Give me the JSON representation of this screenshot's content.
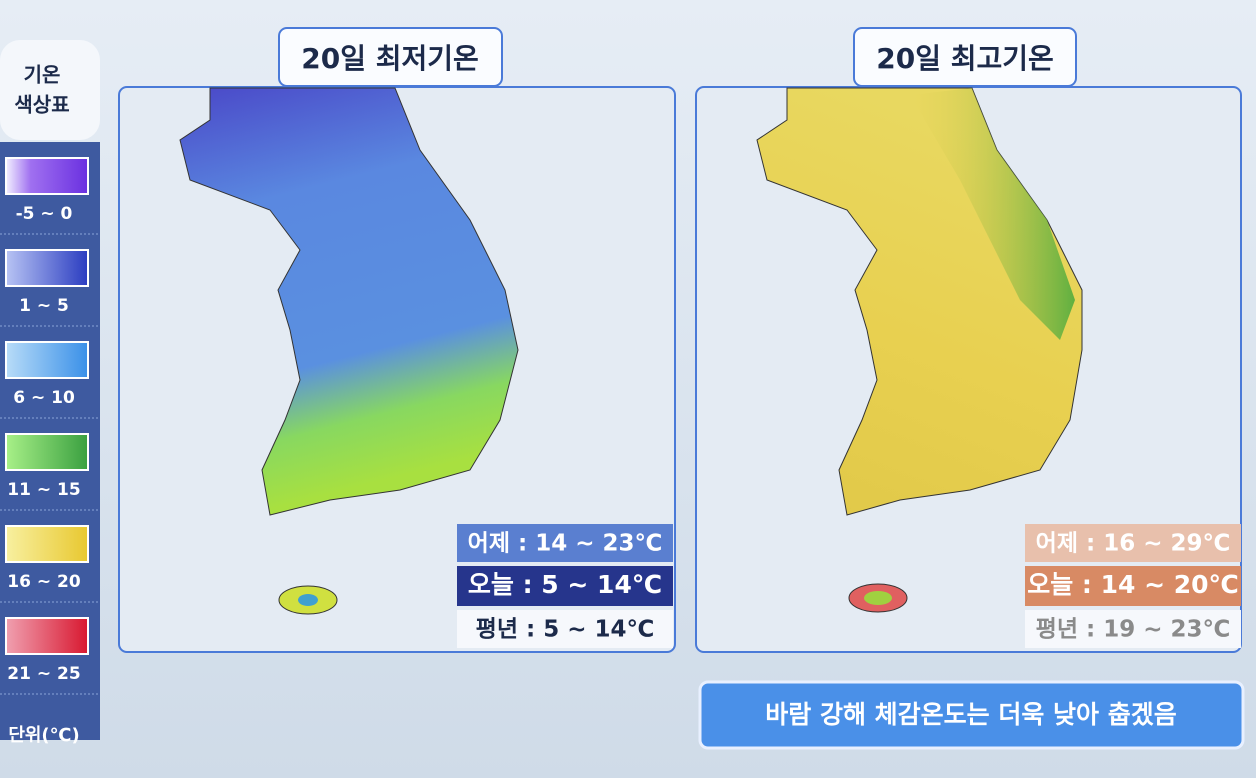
{
  "legend": {
    "title": [
      "기온",
      "색상표"
    ],
    "items": [
      "-5 ~ 0",
      "1 ~ 5",
      "6 ~ 10",
      "11 ~ 15",
      "16 ~ 20",
      "21 ~ 25"
    ],
    "unit": "단위(℃)"
  },
  "maps": [
    {
      "title": "20일 최저기온",
      "stats": [
        "어제 : 14 ~ 23℃",
        "오늘 : 5 ~ 14℃",
        "평년 : 5 ~ 14℃"
      ]
    },
    {
      "title": "20일 최고기온",
      "stats": [
        "어제 : 16 ~ 29℃",
        "오늘 : 14 ~ 20℃",
        "평년 : 19 ~ 23℃"
      ]
    }
  ],
  "caption": "바람 강해 체감온도는 더욱 낮아 춥겠음"
}
